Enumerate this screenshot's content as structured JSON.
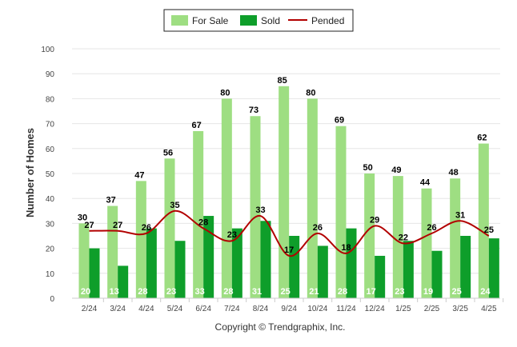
{
  "chart_data": {
    "type": "bar",
    "categories": [
      "2/24",
      "3/24",
      "4/24",
      "5/24",
      "6/24",
      "7/24",
      "8/24",
      "9/24",
      "10/24",
      "11/24",
      "12/24",
      "1/25",
      "2/25",
      "3/25",
      "4/25"
    ],
    "series": [
      {
        "name": "For Sale",
        "type": "bar",
        "color": "#9ede82",
        "values": [
          30,
          37,
          47,
          56,
          67,
          80,
          73,
          85,
          80,
          69,
          50,
          49,
          44,
          48,
          62
        ]
      },
      {
        "name": "Sold",
        "type": "bar",
        "color": "#0e9e2a",
        "values": [
          20,
          13,
          28,
          23,
          33,
          28,
          31,
          25,
          21,
          28,
          17,
          23,
          19,
          25,
          24
        ]
      },
      {
        "name": "Pended",
        "type": "line",
        "color": "#b20000",
        "values": [
          27,
          27,
          26,
          35,
          28,
          23,
          33,
          17,
          26,
          18,
          29,
          22,
          26,
          31,
          25
        ]
      }
    ],
    "ylabel": "Number of Homes",
    "ylim": [
      0,
      100
    ],
    "yticks": [
      0,
      10,
      20,
      30,
      40,
      50,
      60,
      70,
      80,
      90,
      100
    ],
    "grid": true,
    "legend_position": "top-center"
  },
  "footer": {
    "copyright": "Copyright © Trendgraphix, Inc."
  }
}
